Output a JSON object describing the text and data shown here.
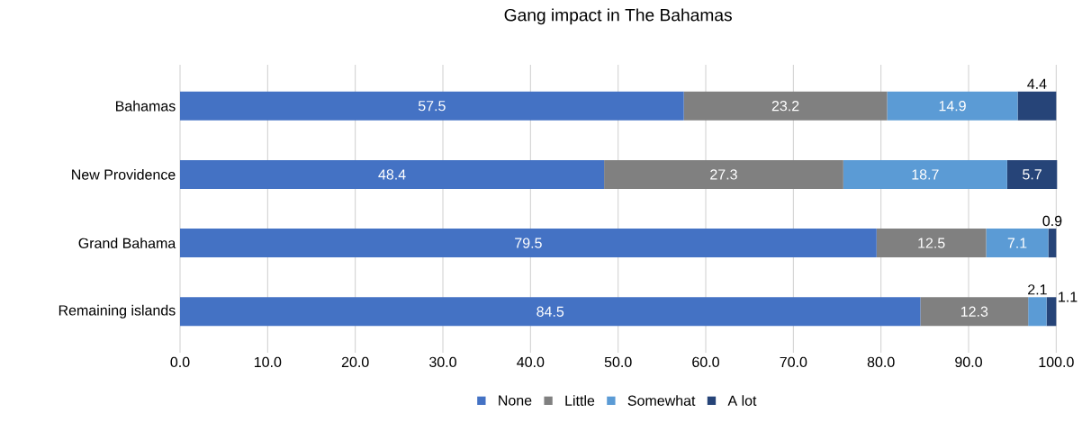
{
  "chart_data": {
    "type": "bar",
    "orientation": "horizontal",
    "stacked": true,
    "title": "Gang impact in The Bahamas",
    "categories": [
      "Bahamas",
      "New Providence",
      "Grand Bahama",
      "Remaining islands"
    ],
    "series": [
      {
        "name": "None",
        "color": "#4472c4",
        "values": [
          57.5,
          48.4,
          79.5,
          84.5
        ],
        "value_labels": [
          "57.5",
          "48.4",
          "79.5",
          "84.5"
        ]
      },
      {
        "name": "Little",
        "color": "#808080",
        "values": [
          23.2,
          27.3,
          12.5,
          12.3
        ],
        "value_labels": [
          "23.2",
          "27.3",
          "12.5",
          "12.3"
        ]
      },
      {
        "name": "Somewhat",
        "color": "#5b9bd5",
        "values": [
          14.9,
          18.7,
          7.1,
          2.1
        ],
        "value_labels": [
          "14.9",
          "18.7",
          "7.1",
          "2.1"
        ]
      },
      {
        "name": "A lot",
        "color": "#264478",
        "values": [
          4.4,
          5.7,
          0.9,
          1.1
        ],
        "value_labels": [
          "4.4",
          "5.7",
          "0.9",
          "1.1"
        ]
      }
    ],
    "xlim": [
      0,
      100
    ],
    "xticks": [
      {
        "value": 0,
        "label": "0.0"
      },
      {
        "value": 10,
        "label": "10.0"
      },
      {
        "value": 20,
        "label": "20.0"
      },
      {
        "value": 30,
        "label": "30.0"
      },
      {
        "value": 40,
        "label": "40.0"
      },
      {
        "value": 50,
        "label": "50.0"
      },
      {
        "value": 60,
        "label": "60.0"
      },
      {
        "value": 70,
        "label": "70.0"
      },
      {
        "value": 80,
        "label": "80.0"
      },
      {
        "value": 90,
        "label": "90.0"
      },
      {
        "value": 100,
        "label": "100.0"
      }
    ],
    "grid": "x",
    "legend": "bottom"
  }
}
